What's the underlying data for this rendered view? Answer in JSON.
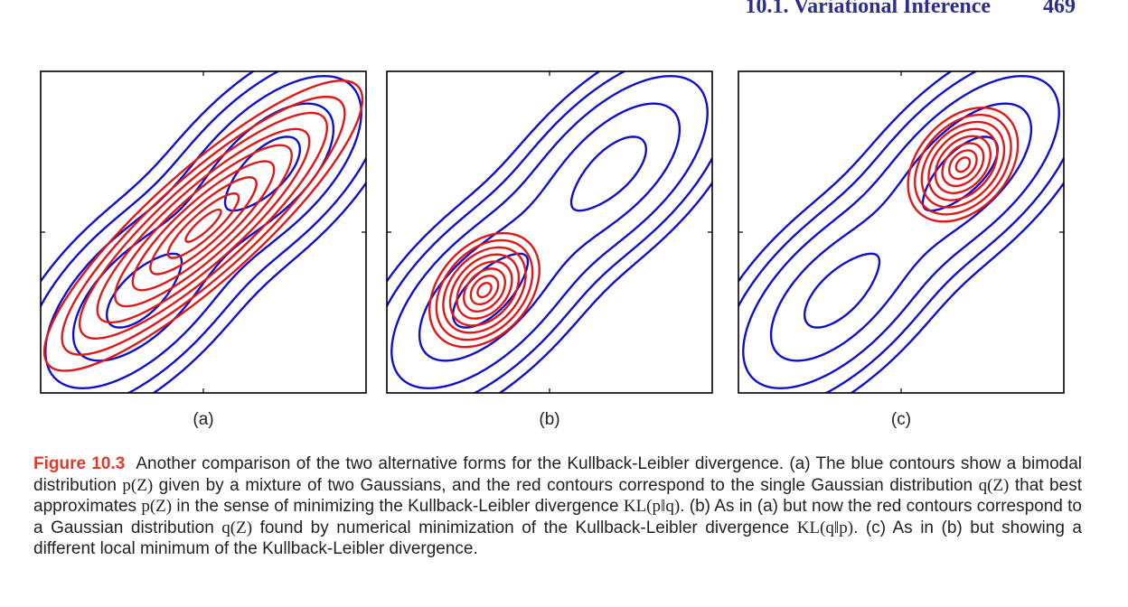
{
  "header": {
    "section": "10.1. Variational Inference",
    "page_number": "469"
  },
  "colors": {
    "true_distribution": "#1010cc",
    "approximation": "#e01818",
    "figure_label": "#e4372c",
    "running_head": "#2b2e8f"
  },
  "panels": [
    {
      "label": "(a)"
    },
    {
      "label": "(b)"
    },
    {
      "label": "(c)"
    }
  ],
  "caption": {
    "figure_label": "Figure 10.3",
    "segments": [
      {
        "kind": "text",
        "value": "Another comparison of the two alternative forms for the Kullback-Leibler divergence. (a) The blue contours show a bimodal distribution "
      },
      {
        "kind": "math",
        "value": "p(Z)"
      },
      {
        "kind": "text",
        "value": " given by a mixture of two Gaussians, and the red contours correspond to the single Gaussian distribution "
      },
      {
        "kind": "math",
        "value": "q(Z)"
      },
      {
        "kind": "text",
        "value": " that best approximates "
      },
      {
        "kind": "math",
        "value": "p(Z)"
      },
      {
        "kind": "text",
        "value": " in the sense of minimizing the Kullback-Leibler divergence "
      },
      {
        "kind": "math",
        "value": "KL(p‖q)"
      },
      {
        "kind": "text",
        "value": ". (b) As in (a) but now the red contours correspond to a Gaussian distribution "
      },
      {
        "kind": "math",
        "value": "q(Z)"
      },
      {
        "kind": "text",
        "value": " found by numerical minimization of the Kullback-Leibler divergence "
      },
      {
        "kind": "math",
        "value": "KL(q‖p)"
      },
      {
        "kind": "text",
        "value": ". (c) As in (b) but showing a different local minimum of the Kullback-Leibler divergence."
      }
    ]
  }
}
